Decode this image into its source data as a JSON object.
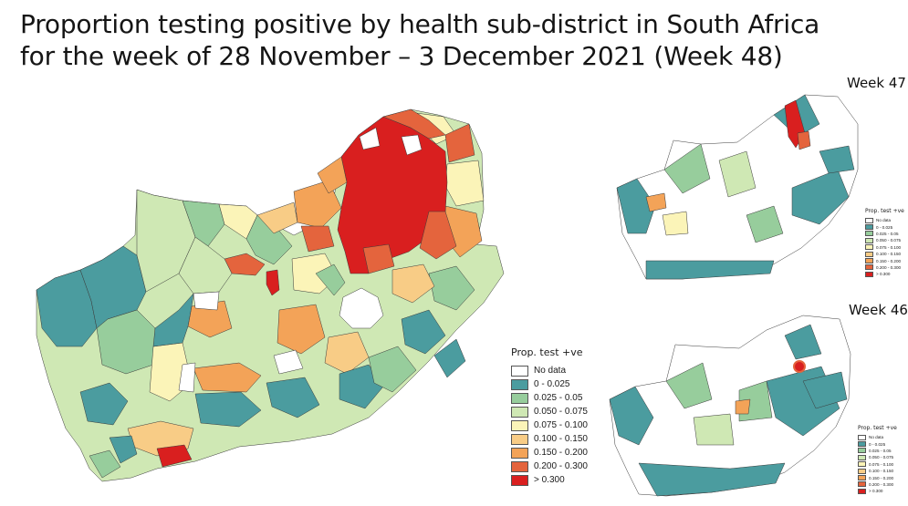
{
  "title": {
    "line1": "Proportion testing positive by health sub-district in South Africa",
    "line2": "for the week of 28 November – 3 December 2021 (Week 48)"
  },
  "insets": {
    "week47_label": "Week 47",
    "week46_label": "Week 46"
  },
  "legend": {
    "title": "Prop. test +ve",
    "items": [
      {
        "label": "No data",
        "color": "#ffffff"
      },
      {
        "label": "0 - 0.025",
        "color": "#4b9c9f"
      },
      {
        "label": "0.025 - 0.05",
        "color": "#97cd9c"
      },
      {
        "label": "0.050 - 0.075",
        "color": "#cfe8b4"
      },
      {
        "label": "0.075 - 0.100",
        "color": "#fbf4b8"
      },
      {
        "label": "0.100 - 0.150",
        "color": "#f8cc86"
      },
      {
        "label": "0.150 - 0.200",
        "color": "#f3a358"
      },
      {
        "label": "0.200 - 0.300",
        "color": "#e4643d"
      },
      {
        "label": "> 0.300",
        "color": "#d91f1f"
      }
    ]
  },
  "colors": {
    "nodata": "#ffffff",
    "c1": "#4b9c9f",
    "c2": "#97cd9c",
    "c3": "#cfe8b4",
    "c4": "#fbf4b8",
    "c5": "#f8cc86",
    "c6": "#f3a358",
    "c7": "#e4643d",
    "c8": "#d91f1f"
  }
}
